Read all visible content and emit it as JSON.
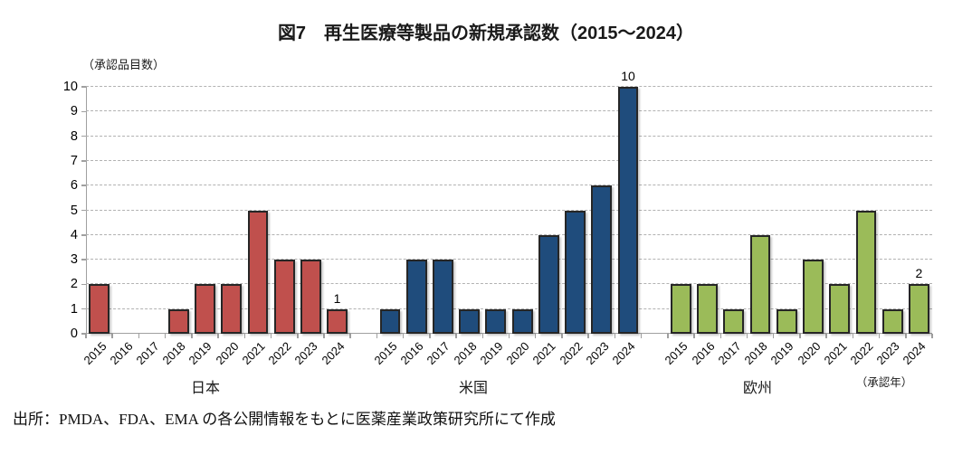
{
  "chart_data": {
    "type": "bar",
    "title": "図7　再生医療等製品の新規承認数（2015～2024）",
    "y_axis_title": "（承認品目数）",
    "x_axis_note": "（承認年）",
    "categories": [
      "2015",
      "2016",
      "2017",
      "2018",
      "2019",
      "2020",
      "2021",
      "2022",
      "2023",
      "2024"
    ],
    "ylim": [
      0,
      10
    ],
    "yticks": [
      0,
      1,
      2,
      3,
      4,
      5,
      6,
      7,
      8,
      9,
      10
    ],
    "grid": "horizontal-dashed",
    "legend_position": "none",
    "series": [
      {
        "name": "日本",
        "key": "japan",
        "color": "#C0504D",
        "values": [
          2,
          0,
          0,
          1,
          2,
          2,
          5,
          3,
          3,
          1
        ],
        "point_labels": {
          "2024": "1"
        }
      },
      {
        "name": "米国",
        "key": "usa",
        "color": "#1F4C7C",
        "values": [
          1,
          3,
          3,
          1,
          1,
          1,
          4,
          5,
          6,
          10
        ],
        "point_labels": {
          "2024": "10"
        }
      },
      {
        "name": "欧州",
        "key": "europe",
        "color": "#9BBB59",
        "values": [
          2,
          2,
          1,
          4,
          1,
          3,
          2,
          5,
          1,
          2
        ],
        "point_labels": {
          "2024": "2"
        }
      }
    ],
    "source": "出所：PMDA、FDA、EMA の各公開情報をもとに医薬産業政策研究所にて作成"
  }
}
